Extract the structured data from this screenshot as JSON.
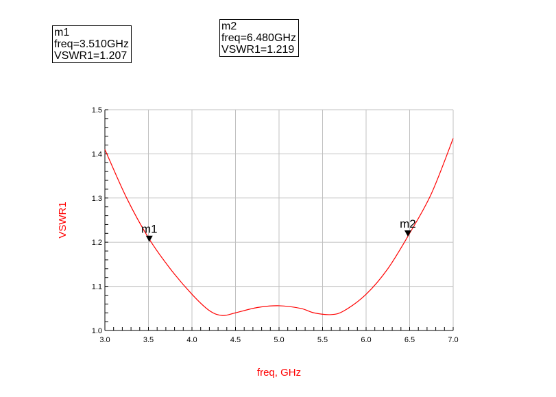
{
  "markers": [
    {
      "name": "m1",
      "freq_text": "freq=3.510GHz",
      "value_text": "VSWR1=1.207",
      "freq": 3.51,
      "value": 1.207
    },
    {
      "name": "m2",
      "freq_text": "freq=6.480GHz",
      "value_text": "VSWR1=1.219",
      "freq": 6.48,
      "value": 1.219
    }
  ],
  "chart_data": {
    "type": "line",
    "title": "",
    "xlabel": "freq, GHz",
    "ylabel": "VSWR1",
    "xlim": [
      3.0,
      7.0
    ],
    "ylim": [
      1.0,
      1.5
    ],
    "x_ticks": [
      "3.0",
      "3.5",
      "4.0",
      "4.5",
      "5.0",
      "5.5",
      "6.0",
      "6.5",
      "7.0"
    ],
    "y_ticks": [
      "1.0",
      "1.1",
      "1.2",
      "1.3",
      "1.4",
      "1.5"
    ],
    "grid": true,
    "line_color": "#ff0000",
    "series": [
      {
        "x": [
          3.0,
          3.25,
          3.5,
          3.75,
          4.0,
          4.2,
          4.35,
          4.5,
          4.75,
          5.0,
          5.25,
          5.4,
          5.6,
          5.75,
          6.0,
          6.25,
          6.5,
          6.75,
          7.0
        ],
        "y": [
          1.41,
          1.3,
          1.21,
          1.14,
          1.082,
          1.045,
          1.034,
          1.04,
          1.052,
          1.056,
          1.05,
          1.04,
          1.036,
          1.045,
          1.082,
          1.14,
          1.22,
          1.31,
          1.435
        ]
      }
    ]
  }
}
